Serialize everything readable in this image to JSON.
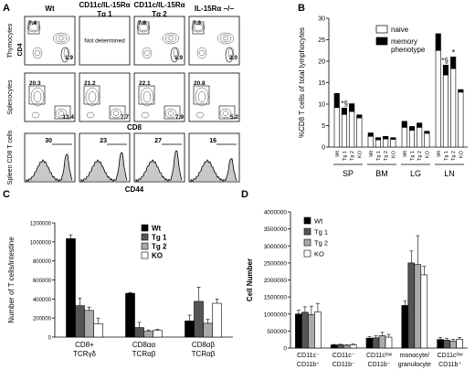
{
  "panels": {
    "A": {
      "letter": "A",
      "column_headers": [
        "Wt",
        "CD11c/IL-15Rα\nTg 1",
        "CD11c/IL-15Rα\nTg 2",
        "IL-15Rα −/−"
      ],
      "row_labels": [
        "Thymocytes",
        "Splenocytes",
        "Spleen CD8 T cells"
      ],
      "axis_labels": {
        "flow_x": "CD8",
        "flow_y": "CD4",
        "hist_x": "CD44"
      },
      "not_determined": "Not determined",
      "thymocytes": [
        {
          "tl": "7.4",
          "br": "1.9"
        },
        null,
        {
          "tl": "7.8",
          "br": "1.9"
        },
        {
          "tl": "7.3",
          "br": "2.0"
        }
      ],
      "splenocytes": [
        {
          "left": "20.3",
          "br": "13.4"
        },
        {
          "left": "21.2",
          "br": "7.7"
        },
        {
          "left": "22.1",
          "br": "7.9"
        },
        {
          "left": "20.8",
          "br": "5.2"
        }
      ],
      "cd44_hi_percent": [
        "30",
        "23",
        "27",
        "16"
      ]
    },
    "B": {
      "letter": "B",
      "chart_data": {
        "type": "bar",
        "ylabel": "%CD8  T cells of total lymphocytes",
        "ylim": [
          0,
          30
        ],
        "yticks": [
          "0",
          "5",
          "10",
          "15",
          "20",
          "25",
          "30"
        ],
        "legend": [
          {
            "name": "naive",
            "color": "#ffffff"
          },
          {
            "name": "memory\nphenotype",
            "color": "#000000"
          }
        ],
        "groups": [
          "SP",
          "BM",
          "LG",
          "LN"
        ],
        "categories": [
          "Wt",
          "Tg 1",
          "Tg 2",
          "KO"
        ],
        "series": [
          {
            "name": "naive",
            "values": [
              [
                9.2,
                7.6,
                8.3,
                6.8
              ],
              [
                2.5,
                1.7,
                1.9,
                1.8
              ],
              [
                4.6,
                3.9,
                4.6,
                3.2
              ],
              [
                22.5,
                16.8,
                18.3,
                12.8
              ]
            ]
          },
          {
            "name": "memory\nphenotype",
            "values": [
              [
                3.3,
                1.5,
                1.8,
                0.7
              ],
              [
                0.8,
                0.5,
                0.6,
                0.4
              ],
              [
                1.4,
                0.9,
                1.0,
                0.5
              ],
              [
                3.9,
                2.3,
                2.7,
                0.6
              ]
            ]
          }
        ],
        "annotations": [
          "*§",
          "*§",
          "*"
        ]
      }
    },
    "C": {
      "letter": "C",
      "chart_data": {
        "type": "bar",
        "ylabel": "Number of T cells/intestine",
        "ylim": [
          0,
          1200000
        ],
        "yticks": [
          "0",
          "200000",
          "400000",
          "600000",
          "800000",
          "1000000",
          "1200000"
        ],
        "categories": [
          "CD8+\nTCRγδ",
          "CD8αα\nTCRαβ",
          "CD8αβ\nTCRαβ"
        ],
        "series": [
          {
            "name": "Wt",
            "color": "#000000",
            "values": [
              1035000,
              460000,
              170000
            ],
            "errors": [
              40000,
              8000,
              60000
            ]
          },
          {
            "name": "Tg 1",
            "color": "#555555",
            "values": [
              330000,
              100000,
              375000
            ],
            "errors": [
              80000,
              55000,
              150000
            ]
          },
          {
            "name": "Tg 2",
            "color": "#aaaaaa",
            "values": [
              280000,
              60000,
              145000
            ],
            "errors": [
              35000,
              15000,
              40000
            ]
          },
          {
            "name": "KO",
            "color": "#ffffff",
            "values": [
              140000,
              70000,
              355000
            ],
            "errors": [
              60000,
              10000,
              45000
            ]
          }
        ]
      }
    },
    "D": {
      "letter": "D",
      "chart_data": {
        "type": "bar",
        "ylabel": "Cell Number",
        "ylim": [
          0,
          4000000
        ],
        "yticks": [
          "0",
          "500000",
          "1000000",
          "1500000",
          "2000000",
          "2500000",
          "3000000",
          "3500000",
          "4000000"
        ],
        "categories": [
          "CD11c⁻\nCD11b⁺",
          "CD11c⁻\nCD11b⁻",
          "CD11cˡᵒʷ\nCD11b⁻",
          "monocyte/\ngranulocyte",
          "CD11cˡᵒʷ\nCD11b⁺"
        ],
        "series": [
          {
            "name": "Wt",
            "color": "#000000",
            "values": [
              1000000,
              90000,
              290000,
              1250000,
              250000
            ],
            "errors": [
              110000,
              15000,
              40000,
              130000,
              60000
            ]
          },
          {
            "name": "Tg 1",
            "color": "#555555",
            "values": [
              1050000,
              95000,
              300000,
              2500000,
              230000
            ],
            "errors": [
              160000,
              15000,
              60000,
              350000,
              60000
            ]
          },
          {
            "name": "Tg 2",
            "color": "#aaaaaa",
            "values": [
              980000,
              80000,
              360000,
              2450000,
              200000
            ],
            "errors": [
              250000,
              15000,
              100000,
              850000,
              60000
            ]
          },
          {
            "name": "KO",
            "color": "#ffffff",
            "values": [
              1060000,
              100000,
              320000,
              2150000,
              260000
            ],
            "errors": [
              250000,
              15000,
              80000,
              250000,
              50000
            ]
          }
        ]
      }
    }
  }
}
